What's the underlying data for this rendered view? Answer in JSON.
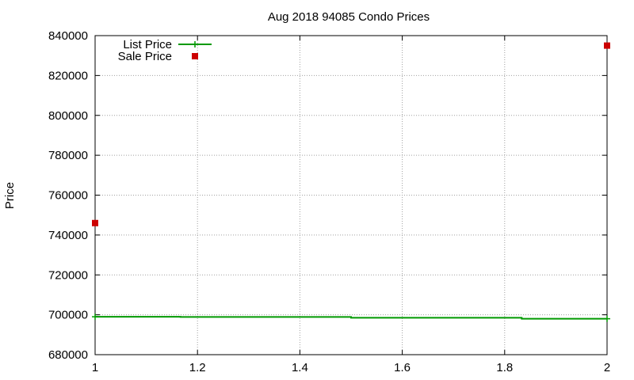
{
  "chart_data": {
    "type": "line",
    "title": "Aug 2018 94085 Condo Prices",
    "xlabel": "",
    "ylabel": "Price",
    "xlim": [
      1,
      2
    ],
    "ylim": [
      680000,
      840000
    ],
    "x_ticks": [
      "1",
      "1.2",
      "1.4",
      "1.6",
      "1.8",
      "2"
    ],
    "y_ticks": [
      "680000",
      "700000",
      "720000",
      "740000",
      "760000",
      "780000",
      "800000",
      "820000",
      "840000"
    ],
    "grid": true,
    "legend_position": "top-left",
    "series": [
      {
        "name": "List Price",
        "style": "steps",
        "color": "#009900",
        "points": [
          {
            "x": 1.0,
            "y": 699000
          },
          {
            "x": 1.1667,
            "y": 698900
          },
          {
            "x": 1.5,
            "y": 698500
          },
          {
            "x": 1.8333,
            "y": 698000
          },
          {
            "x": 2.0,
            "y": 698000
          }
        ]
      },
      {
        "name": "Sale Price",
        "style": "points",
        "color": "#cc0000",
        "points": [
          {
            "x": 1.0,
            "y": 746000
          },
          {
            "x": 2.0,
            "y": 835000
          }
        ]
      }
    ]
  }
}
